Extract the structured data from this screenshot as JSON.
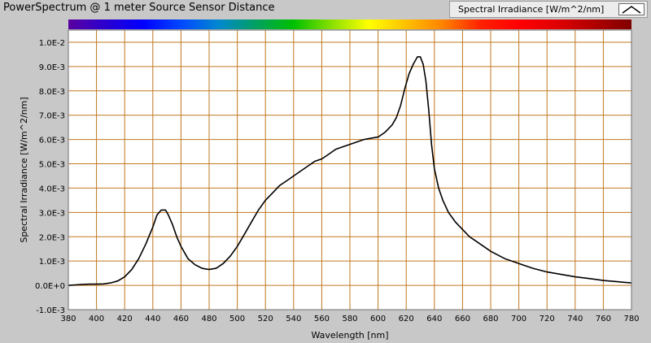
{
  "chart_data": {
    "type": "line",
    "title": "PowerSpectrum @ 1 meter Source Sensor Distance",
    "xlabel": "Wavelength [nm]",
    "ylabel": "Spectral Irradiance [W/m^2/nm]",
    "xlim": [
      380,
      780
    ],
    "ylim": [
      -0.001,
      0.0105
    ],
    "grid": true,
    "legend_position": "top-right",
    "xticks": [
      "380",
      "400",
      "420",
      "440",
      "460",
      "480",
      "500",
      "520",
      "540",
      "560",
      "580",
      "600",
      "620",
      "640",
      "660",
      "680",
      "700",
      "720",
      "740",
      "760",
      "780"
    ],
    "yticks": [
      {
        "value": -0.001,
        "label": "-1.0E-3"
      },
      {
        "value": 0.0,
        "label": "0.0E+0"
      },
      {
        "value": 0.001,
        "label": "1.0E-3"
      },
      {
        "value": 0.002,
        "label": "2.0E-3"
      },
      {
        "value": 0.003,
        "label": "3.0E-3"
      },
      {
        "value": 0.004,
        "label": "4.0E-3"
      },
      {
        "value": 0.005,
        "label": "5.0E-3"
      },
      {
        "value": 0.006,
        "label": "6.0E-3"
      },
      {
        "value": 0.007,
        "label": "7.0E-3"
      },
      {
        "value": 0.008,
        "label": "8.0E-3"
      },
      {
        "value": 0.009,
        "label": "9.0E-3"
      },
      {
        "value": 0.01,
        "label": "1.0E-2"
      }
    ],
    "series": [
      {
        "name": "Spectral Irradiance [W/m^2/nm]",
        "color": "#000000",
        "x": [
          380,
          385,
          390,
          395,
          400,
          405,
          410,
          415,
          420,
          425,
          430,
          435,
          440,
          443,
          446,
          449,
          451,
          454,
          457,
          460,
          465,
          470,
          475,
          480,
          485,
          490,
          495,
          500,
          505,
          510,
          515,
          520,
          525,
          530,
          535,
          540,
          545,
          550,
          555,
          560,
          565,
          570,
          575,
          580,
          585,
          590,
          595,
          600,
          605,
          610,
          613,
          616,
          619,
          622,
          625,
          628,
          630,
          632,
          634,
          636,
          638,
          640,
          643,
          646,
          650,
          655,
          660,
          665,
          670,
          675,
          680,
          690,
          700,
          710,
          720,
          730,
          740,
          750,
          760,
          770,
          780
        ],
        "y": [
          0.0,
          2e-05,
          4e-05,
          5e-05,
          5e-05,
          6e-05,
          0.0001,
          0.00018,
          0.00035,
          0.00065,
          0.0011,
          0.0017,
          0.0024,
          0.0029,
          0.0031,
          0.0031,
          0.0029,
          0.0025,
          0.002,
          0.0016,
          0.0011,
          0.00085,
          0.0007,
          0.00065,
          0.0007,
          0.0009,
          0.0012,
          0.0016,
          0.0021,
          0.0026,
          0.0031,
          0.0035,
          0.0038,
          0.0041,
          0.0043,
          0.0045,
          0.0047,
          0.0049,
          0.0051,
          0.0052,
          0.0054,
          0.0056,
          0.0057,
          0.0058,
          0.0059,
          0.006,
          0.00605,
          0.0061,
          0.0063,
          0.0066,
          0.0069,
          0.0074,
          0.0081,
          0.0087,
          0.0091,
          0.0094,
          0.0094,
          0.0091,
          0.0084,
          0.0072,
          0.0058,
          0.0048,
          0.004,
          0.0035,
          0.003,
          0.0026,
          0.0023,
          0.002,
          0.0018,
          0.0016,
          0.0014,
          0.0011,
          0.0009,
          0.0007,
          0.00055,
          0.00045,
          0.00035,
          0.00028,
          0.0002,
          0.00015,
          0.0001
        ]
      }
    ],
    "spectrum_colors": [
      "#5a00a0",
      "#2a00d0",
      "#0000ff",
      "#0048ff",
      "#0088d0",
      "#00a060",
      "#00c000",
      "#88e000",
      "#ffff00",
      "#ffc000",
      "#ff8000",
      "#ff2000",
      "#ff0000",
      "#e00000",
      "#b00000",
      "#800000"
    ]
  }
}
